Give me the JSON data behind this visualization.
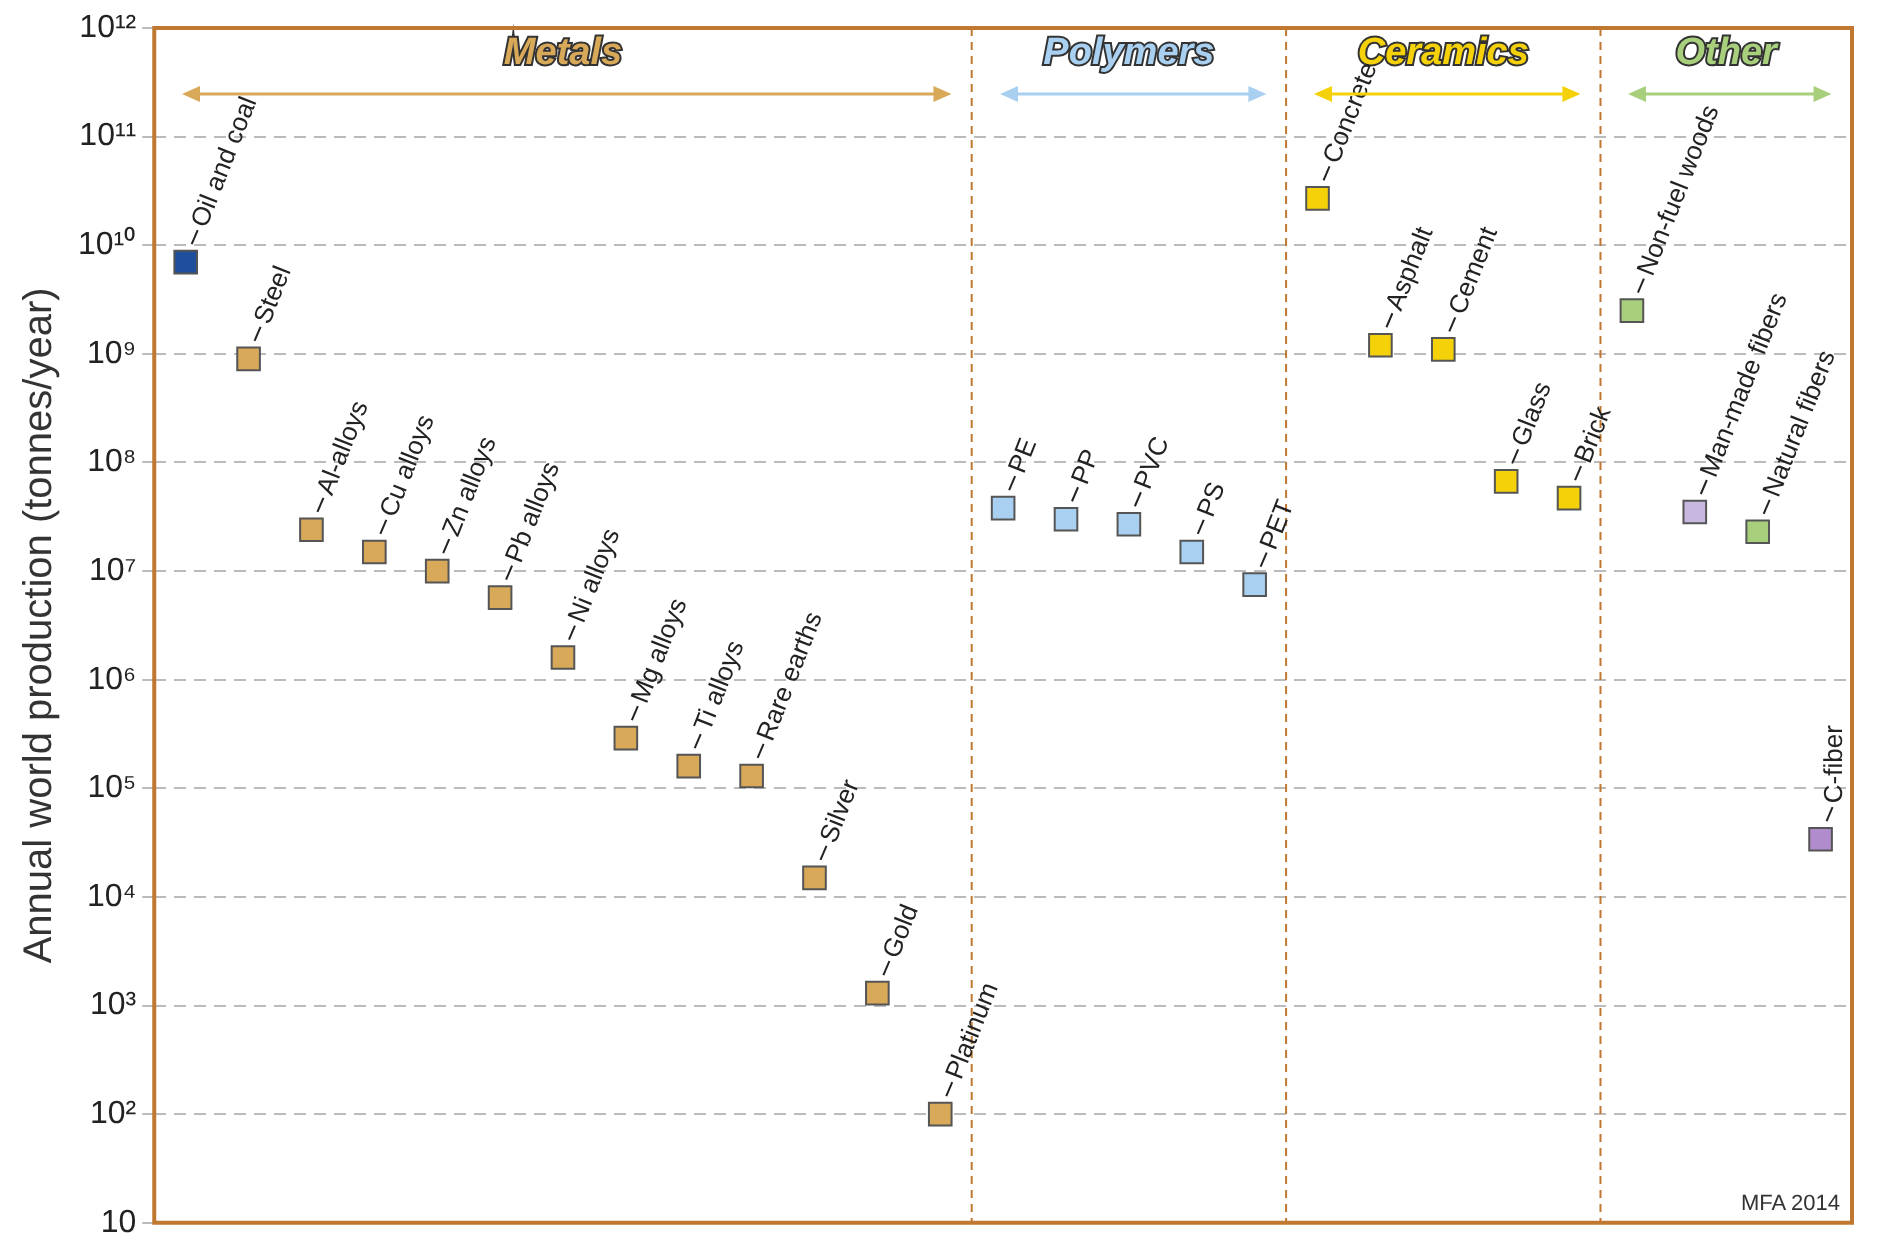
{
  "chart_data": {
    "type": "scatter",
    "ylabel": "Annual world production (tonnes/year)",
    "categories": [
      null,
      null,
      null,
      null,
      null,
      null,
      null,
      null,
      null,
      null,
      null,
      null,
      null,
      null,
      null,
      null,
      null,
      null,
      null,
      null,
      null,
      null,
      null,
      null,
      null,
      null,
      null
    ],
    "series": [
      {
        "name": "Metals",
        "color": "#d9a95a",
        "colors": [
          "#1f4e9c",
          "#d9a95a",
          "#d9a95a",
          "#d9a95a",
          "#d9a95a",
          "#d9a95a",
          "#d9a95a",
          "#d9a95a",
          "#d9a95a",
          "#d9a95a",
          "#d9a95a",
          "#d9a95a",
          "#d9a95a",
          null,
          null,
          null,
          null,
          null,
          null,
          null,
          null,
          null,
          null,
          null,
          null,
          null,
          null
        ],
        "values": [
          7000000000.0,
          900000000.0,
          24000000.0,
          15000000.0,
          10000000.0,
          5700000.0,
          1600000.0,
          290000.0,
          160000.0,
          130000.0,
          15000.0,
          1300.0,
          100,
          null,
          null,
          null,
          null,
          null,
          null,
          null,
          null,
          null,
          null,
          null,
          null,
          null,
          null
        ]
      },
      {
        "name": "Polymers",
        "color": "#a9d0f0",
        "values": [
          null,
          null,
          null,
          null,
          null,
          null,
          null,
          null,
          null,
          null,
          null,
          null,
          null,
          38000000.0,
          30000000.0,
          27000000.0,
          15000000.0,
          7500000.0,
          null,
          null,
          null,
          null,
          null,
          null,
          null,
          null,
          null
        ]
      },
      {
        "name": "Ceramics",
        "color": "#f5d10a",
        "values": [
          null,
          null,
          null,
          null,
          null,
          null,
          null,
          null,
          null,
          null,
          null,
          null,
          null,
          null,
          null,
          null,
          null,
          null,
          27000000000.0,
          1200000000.0,
          1100000000.0,
          67000000.0,
          47000000.0,
          null,
          null,
          null,
          null
        ]
      },
      {
        "name": "Other",
        "color": "#a8cf7c",
        "colors": [
          null,
          null,
          null,
          null,
          null,
          null,
          null,
          null,
          null,
          null,
          null,
          null,
          null,
          null,
          null,
          null,
          null,
          null,
          null,
          null,
          null,
          null,
          null,
          "#a8cf7c",
          "#c8b8e0",
          "#a8cf7c",
          "#b08ccc"
        ],
        "values": [
          null,
          null,
          null,
          null,
          null,
          null,
          null,
          null,
          null,
          null,
          null,
          null,
          null,
          null,
          null,
          null,
          null,
          null,
          null,
          null,
          null,
          null,
          null,
          2500000000.0,
          35000000.0,
          23000000.0,
          34000.0
        ]
      }
    ],
    "log": "y",
    "ylim": [
      10,
      1000000000000.0
    ],
    "yticks": [
      {
        "value": 10,
        "label": "10"
      },
      {
        "value": 100,
        "label": "10²"
      },
      {
        "value": 1000,
        "label": "10³"
      },
      {
        "value": 10000.0,
        "label": "10⁴"
      },
      {
        "value": 100000.0,
        "label": "10⁵"
      },
      {
        "value": 1000000.0,
        "label": "10⁶"
      },
      {
        "value": 10000000.0,
        "label": "10⁷"
      },
      {
        "value": 100000000.0,
        "label": "10⁸"
      },
      {
        "value": 1000000000.0,
        "label": "10⁹"
      },
      {
        "value": 10000000000.0,
        "label": "10¹⁰"
      },
      {
        "value": 100000000000.0,
        "label": "10¹¹"
      },
      {
        "value": 1000000000000.0,
        "label": "10¹²"
      }
    ],
    "grid": "y",
    "marker": "square",
    "tick_labels": "y",
    "annotations": [
      "Oil and coal",
      "Steel",
      "Al-alloys",
      "Cu alloys",
      "Zn alloys",
      "Pb alloys",
      "Ni alloys",
      "Mg alloys",
      "Ti alloys",
      "Rare earths",
      "Silver",
      "Gold",
      "Platinum",
      "PE",
      "PP",
      "PVC",
      "PS",
      "PET",
      "Concrete",
      "Asphalt",
      "Cement",
      "Glass",
      "Brick",
      "Non-fuel woods",
      "Man-made fibers",
      "Natural fibers",
      "C-fiber",
      "MFA 2014"
    ]
  }
}
